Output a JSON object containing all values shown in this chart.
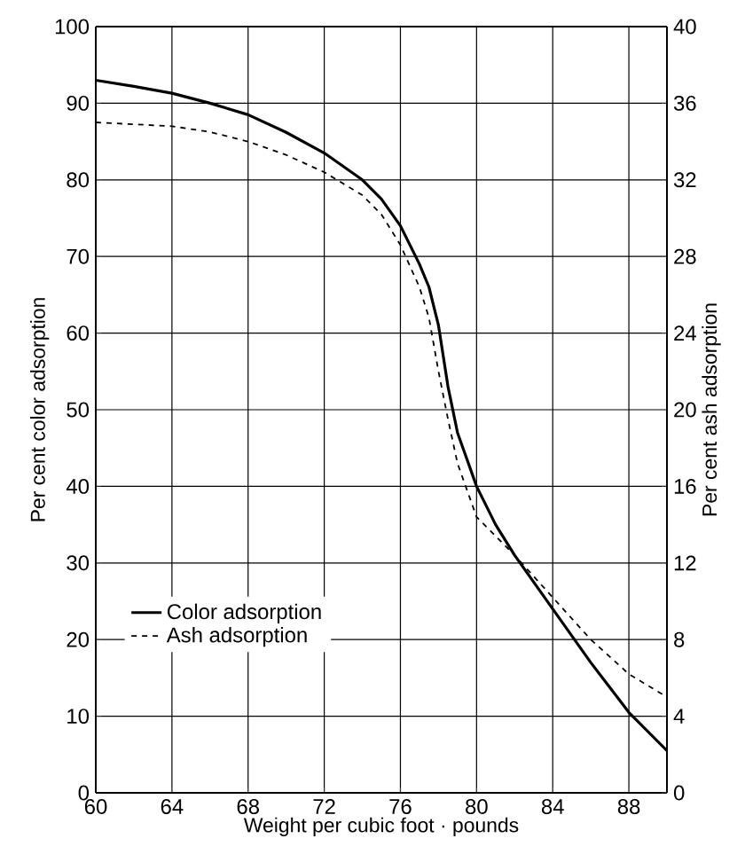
{
  "chart_data": {
    "type": "line",
    "xlabel": "Weight per cubic foot · pounds",
    "ylabel": "Per cent color adsorption",
    "y2label": "Per cent ash adsorption",
    "xlim": [
      60,
      90
    ],
    "xticks": [
      60,
      64,
      68,
      72,
      76,
      80,
      84,
      88
    ],
    "ylim": [
      0,
      100
    ],
    "yticks": [
      0,
      10,
      20,
      30,
      40,
      50,
      60,
      70,
      80,
      90,
      100
    ],
    "y2lim": [
      0,
      40
    ],
    "y2ticks": [
      0,
      4,
      8,
      12,
      16,
      20,
      24,
      28,
      32,
      36,
      40
    ],
    "grid": true,
    "legend": "left",
    "marker": "none",
    "series": [
      {
        "name": "Color adsorption",
        "color": "#000000",
        "line_style": "solid",
        "x": [
          60,
          62,
          64,
          66,
          68,
          70,
          72,
          74,
          75,
          76,
          77,
          77.5,
          78,
          78.5,
          79,
          80,
          81,
          82,
          84,
          86,
          88,
          90
        ],
        "values": [
          93,
          92.2,
          91.3,
          90,
          88.5,
          86.2,
          83.5,
          80,
          77.5,
          74,
          69,
          66,
          61,
          53,
          47,
          40,
          35,
          31,
          24,
          17,
          10.5,
          5.5
        ]
      },
      {
        "name": "Ash adsorption",
        "color": "#000000",
        "line_style": "dashed",
        "axis": "y2",
        "x": [
          60,
          62,
          64,
          66,
          68,
          70,
          72,
          74,
          75,
          76,
          77,
          77.5,
          78,
          78.5,
          79,
          80,
          81,
          82,
          84,
          86,
          88,
          90
        ],
        "values": [
          35,
          34.9,
          34.8,
          34.5,
          34,
          33.3,
          32.4,
          31.2,
          30.2,
          28.6,
          26.4,
          24.8,
          22,
          19.5,
          17.2,
          14.4,
          13.4,
          12.4,
          10.2,
          8,
          6.2,
          5
        ]
      }
    ]
  }
}
